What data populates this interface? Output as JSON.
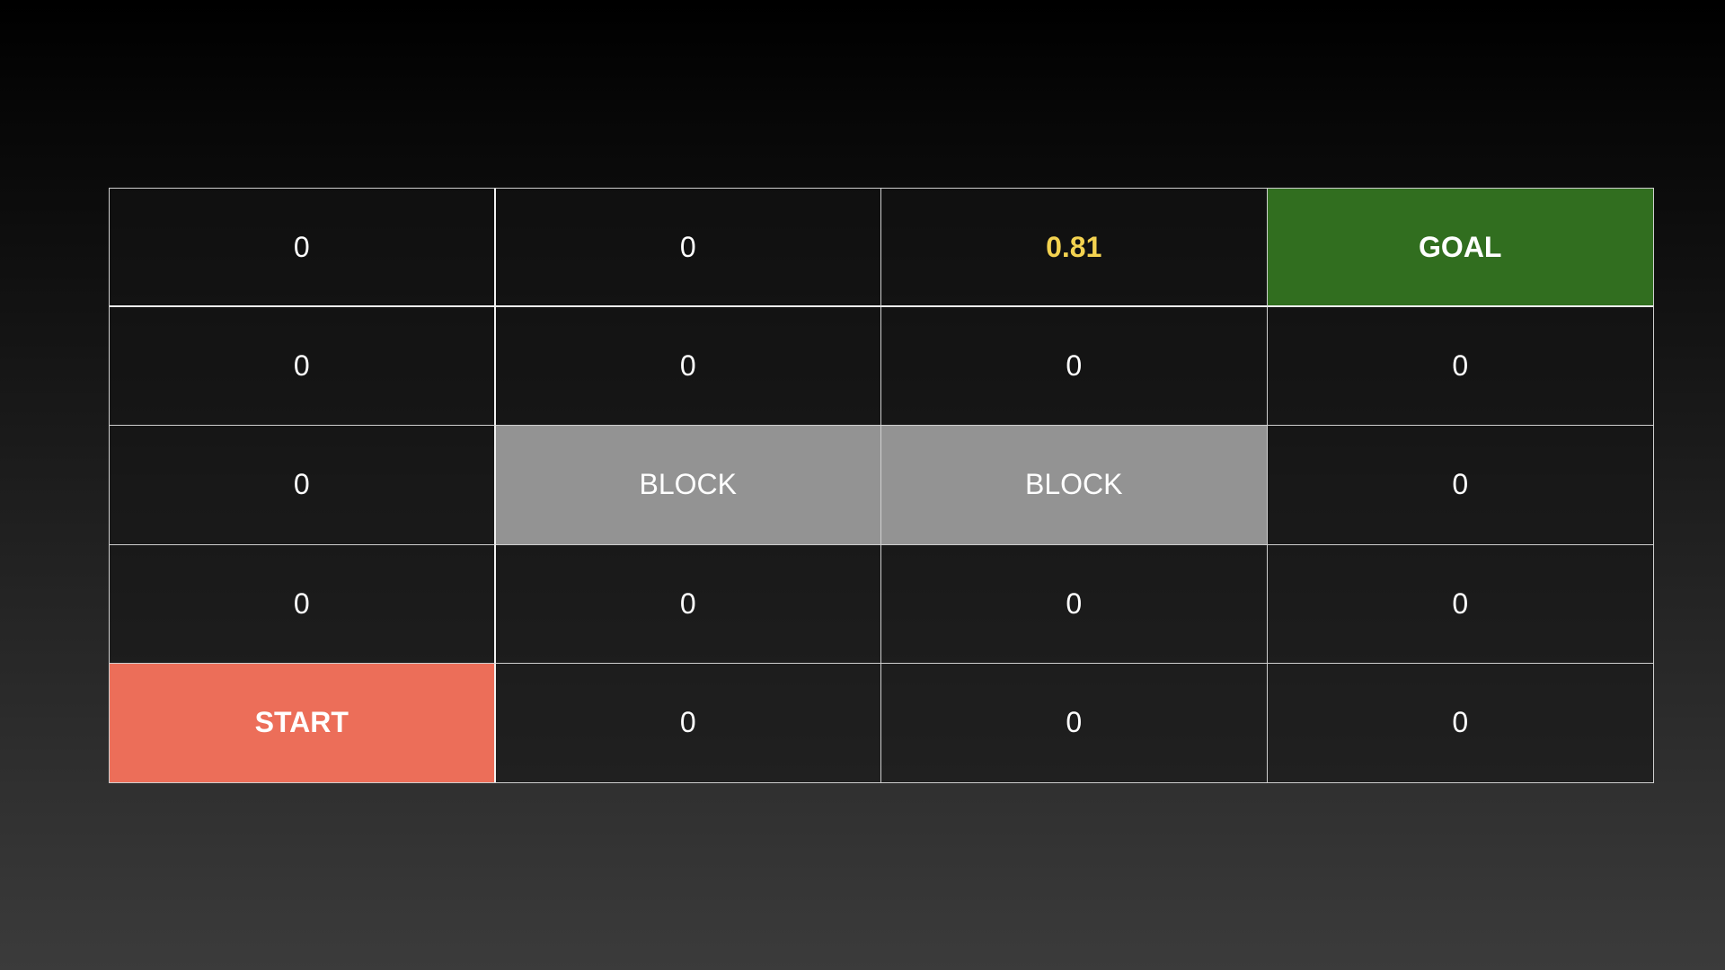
{
  "grid": {
    "rows": [
      [
        {
          "label": "0",
          "type": "value"
        },
        {
          "label": "0",
          "type": "value"
        },
        {
          "label": "0.81",
          "type": "highlight"
        },
        {
          "label": "GOAL",
          "type": "goal"
        }
      ],
      [
        {
          "label": "0",
          "type": "value"
        },
        {
          "label": "0",
          "type": "value"
        },
        {
          "label": "0",
          "type": "value"
        },
        {
          "label": "0",
          "type": "value"
        }
      ],
      [
        {
          "label": "0",
          "type": "value"
        },
        {
          "label": "BLOCK",
          "type": "block"
        },
        {
          "label": "BLOCK",
          "type": "block"
        },
        {
          "label": "0",
          "type": "value"
        }
      ],
      [
        {
          "label": "0",
          "type": "value"
        },
        {
          "label": "0",
          "type": "value"
        },
        {
          "label": "0",
          "type": "value"
        },
        {
          "label": "0",
          "type": "value"
        }
      ],
      [
        {
          "label": "START",
          "type": "start"
        },
        {
          "label": "0",
          "type": "value"
        },
        {
          "label": "0",
          "type": "value"
        },
        {
          "label": "0",
          "type": "value"
        }
      ]
    ]
  },
  "colors": {
    "goal": "#316e1f",
    "start": "#ec6e59",
    "block": "#939393",
    "highlight": "#f3d250",
    "text": "#ffffff"
  }
}
